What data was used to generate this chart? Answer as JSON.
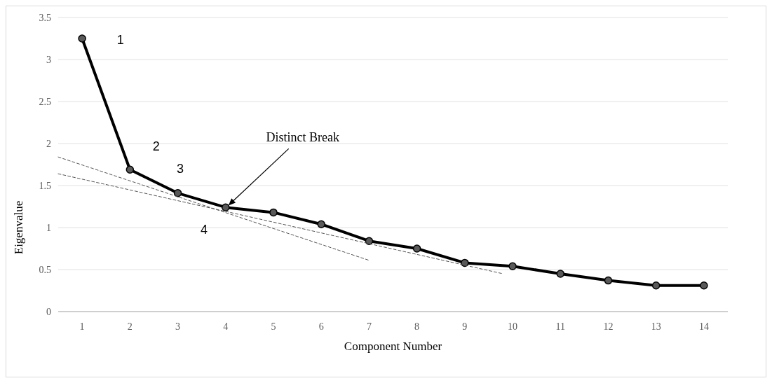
{
  "chart_data": {
    "type": "line",
    "xlabel": "Component Number",
    "ylabel": "Eigenvalue",
    "x": [
      1,
      2,
      3,
      4,
      5,
      6,
      7,
      8,
      9,
      10,
      11,
      12,
      13,
      14
    ],
    "series": [
      {
        "color": "#000000",
        "marker": "circle",
        "values": [
          3.25,
          1.69,
          1.41,
          1.24,
          1.18,
          1.04,
          0.84,
          0.75,
          0.58,
          0.54,
          0.45,
          0.37,
          0.31,
          0.31
        ]
      },
      {
        "type": "line",
        "color": "#555555",
        "line_style": "dashed",
        "marker": "none",
        "x": [
          0.5,
          7
        ],
        "values": [
          1.84,
          0.61
        ]
      },
      {
        "type": "line",
        "color": "#555555",
        "line_style": "dashed",
        "marker": "none",
        "x": [
          0.5,
          9.8
        ],
        "values": [
          1.64,
          0.45
        ]
      }
    ],
    "xlim": [
      0.5,
      14.5
    ],
    "xticks": [
      1,
      2,
      3,
      4,
      5,
      6,
      7,
      8,
      9,
      10,
      11,
      12,
      13,
      14
    ],
    "ylim": [
      0,
      3.5
    ],
    "yticks": [
      0,
      0.5,
      1,
      1.5,
      2,
      2.5,
      3,
      3.5
    ],
    "grid": "y",
    "annotations": [
      "1",
      "2",
      "3",
      "4",
      "Distinct Break"
    ]
  }
}
